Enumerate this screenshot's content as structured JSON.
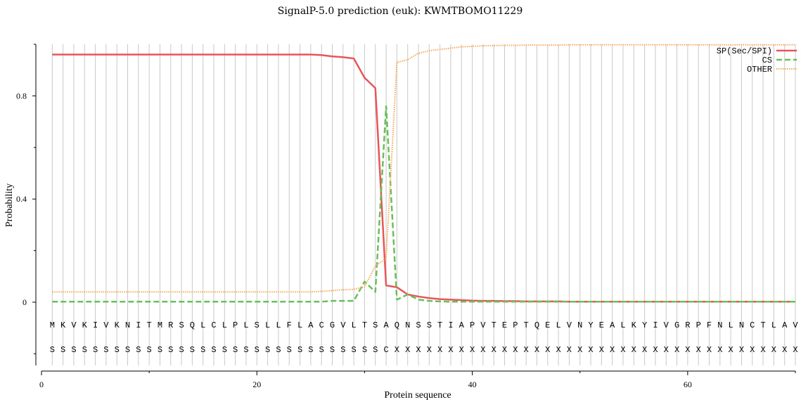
{
  "chart_data": {
    "type": "line",
    "title": "SignalP-5.0 prediction (euk):  KWMTBOMO11229",
    "xlabel": "Protein sequence",
    "ylabel": "Probability",
    "xlim": [
      0,
      70
    ],
    "ylim": [
      -0.25,
      1.0
    ],
    "x_ticks": [
      0,
      20,
      40,
      60
    ],
    "y_ticks": [
      0,
      0.4,
      0.8
    ],
    "x_tick_labels": [
      "0",
      "20",
      "40",
      "60"
    ],
    "y_tick_labels": [
      "0",
      "0.4",
      "0.8"
    ],
    "grid": "vertical lines at each residue",
    "legend_position": "top-right",
    "x": [
      1,
      2,
      3,
      4,
      5,
      6,
      7,
      8,
      9,
      10,
      11,
      12,
      13,
      14,
      15,
      16,
      17,
      18,
      19,
      20,
      21,
      22,
      23,
      24,
      25,
      26,
      27,
      28,
      29,
      30,
      31,
      32,
      33,
      34,
      35,
      36,
      37,
      38,
      39,
      40,
      41,
      42,
      43,
      44,
      45,
      46,
      47,
      48,
      49,
      50,
      51,
      52,
      53,
      54,
      55,
      56,
      57,
      58,
      59,
      60,
      61,
      62,
      63,
      64,
      65,
      66,
      67,
      68,
      69,
      70
    ],
    "series": [
      {
        "name": "SP(Sec/SPI)",
        "color": "#e8555a",
        "style": "solid",
        "values": [
          0.96,
          0.96,
          0.96,
          0.96,
          0.96,
          0.96,
          0.96,
          0.96,
          0.96,
          0.96,
          0.96,
          0.96,
          0.96,
          0.96,
          0.96,
          0.96,
          0.96,
          0.96,
          0.96,
          0.96,
          0.96,
          0.96,
          0.96,
          0.96,
          0.96,
          0.958,
          0.953,
          0.95,
          0.945,
          0.87,
          0.83,
          0.065,
          0.058,
          0.03,
          0.022,
          0.016,
          0.012,
          0.01,
          0.008,
          0.006,
          0.005,
          0.005,
          0.004,
          0.004,
          0.003,
          0.003,
          0.003,
          0.003,
          0.002,
          0.002,
          0.002,
          0.002,
          0.002,
          0.002,
          0.002,
          0.002,
          0.002,
          0.002,
          0.002,
          0.002,
          0.002,
          0.002,
          0.002,
          0.002,
          0.002,
          0.002,
          0.002,
          0.002,
          0.002,
          0.002
        ]
      },
      {
        "name": "CS",
        "color": "#6abf5a",
        "style": "dashed",
        "values": [
          0.002,
          0.002,
          0.002,
          0.002,
          0.002,
          0.002,
          0.002,
          0.002,
          0.002,
          0.002,
          0.002,
          0.002,
          0.002,
          0.002,
          0.002,
          0.002,
          0.002,
          0.002,
          0.002,
          0.002,
          0.002,
          0.002,
          0.002,
          0.002,
          0.002,
          0.002,
          0.005,
          0.005,
          0.005,
          0.08,
          0.04,
          0.76,
          0.01,
          0.03,
          0.01,
          0.005,
          0.003,
          0.002,
          0.002,
          0.002,
          0.002,
          0.002,
          0.002,
          0.002,
          0.002,
          0.002,
          0.002,
          0.002,
          0.002,
          0.002,
          0.002,
          0.002,
          0.002,
          0.002,
          0.002,
          0.002,
          0.002,
          0.002,
          0.002,
          0.002,
          0.002,
          0.002,
          0.002,
          0.002,
          0.002,
          0.002,
          0.002,
          0.002,
          0.002,
          0.002
        ]
      },
      {
        "name": "OTHER",
        "color": "#f5a85a",
        "style": "dotted",
        "values": [
          0.04,
          0.04,
          0.04,
          0.04,
          0.04,
          0.04,
          0.04,
          0.04,
          0.04,
          0.04,
          0.04,
          0.04,
          0.04,
          0.04,
          0.04,
          0.04,
          0.04,
          0.04,
          0.04,
          0.04,
          0.04,
          0.04,
          0.04,
          0.04,
          0.04,
          0.042,
          0.045,
          0.048,
          0.05,
          0.06,
          0.14,
          0.17,
          0.93,
          0.94,
          0.965,
          0.975,
          0.98,
          0.985,
          0.99,
          0.992,
          0.994,
          0.995,
          0.996,
          0.996,
          0.997,
          0.997,
          0.997,
          0.997,
          0.998,
          0.998,
          0.998,
          0.998,
          0.998,
          0.998,
          0.998,
          0.998,
          0.998,
          0.998,
          0.998,
          0.998,
          0.998,
          0.998,
          0.998,
          0.998,
          0.998,
          0.998,
          0.998,
          0.998,
          0.998,
          0.998
        ]
      }
    ],
    "sequence": [
      "M",
      "K",
      "V",
      "K",
      "I",
      "V",
      "K",
      "N",
      "I",
      "T",
      "M",
      "R",
      "S",
      "Q",
      "L",
      "C",
      "L",
      "P",
      "L",
      "S",
      "L",
      "L",
      "F",
      "L",
      "A",
      "C",
      "G",
      "V",
      "L",
      "T",
      "S",
      "A",
      "Q",
      "N",
      "S",
      "S",
      "T",
      "I",
      "A",
      "P",
      "V",
      "T",
      "E",
      "P",
      "T",
      "Q",
      "E",
      "L",
      "V",
      "N",
      "Y",
      "E",
      "A",
      "L",
      "K",
      "Y",
      "I",
      "V",
      "G",
      "R",
      "P",
      "F",
      "N",
      "L",
      "N",
      "C",
      "T",
      "L",
      "A",
      "V"
    ],
    "annotation": [
      "S",
      "S",
      "S",
      "S",
      "S",
      "S",
      "S",
      "S",
      "S",
      "S",
      "S",
      "S",
      "S",
      "S",
      "S",
      "S",
      "S",
      "S",
      "S",
      "S",
      "S",
      "S",
      "S",
      "S",
      "S",
      "S",
      "S",
      "S",
      "S",
      "S",
      "S",
      "C",
      "X",
      "X",
      "X",
      "X",
      "X",
      "X",
      "X",
      "X",
      "X",
      "X",
      "X",
      "X",
      "X",
      "X",
      "X",
      "X",
      "X",
      "X",
      "X",
      "X",
      "X",
      "X",
      "X",
      "X",
      "X",
      "X",
      "X",
      "X",
      "X",
      "X",
      "X",
      "X",
      "X",
      "X",
      "X",
      "X",
      "X",
      "X"
    ]
  }
}
